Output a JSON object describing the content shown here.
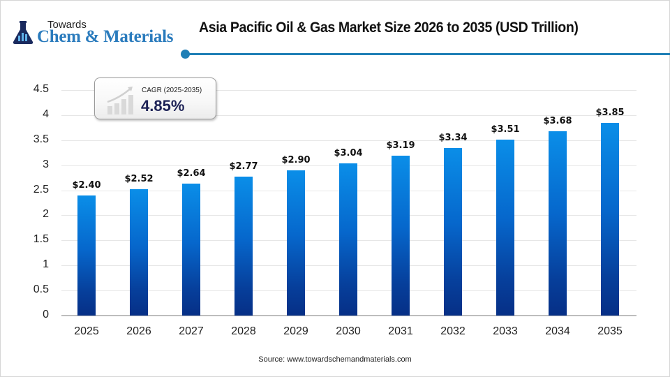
{
  "logo": {
    "top_text": "Towards",
    "main_text": "Chem & Materials",
    "icon": "flask-chart-icon"
  },
  "header": {
    "title": "Asia Pacific Oil & Gas Market Size 2026 to 2035 (USD Trillion)",
    "accent_color": "#1f7fb6"
  },
  "cagr": {
    "label": "CAGR (2025-2035)",
    "value": "4.85%",
    "icon": "growth-chart-icon"
  },
  "axis": {
    "y_ticks": [
      "0",
      "0.5",
      "1",
      "1.5",
      "2",
      "2.5",
      "3",
      "3.5",
      "4",
      "4.5"
    ],
    "x_ticks": [
      "2025",
      "2026",
      "2027",
      "2028",
      "2029",
      "2030",
      "2031",
      "2032",
      "2033",
      "2034",
      "2035"
    ]
  },
  "bars": {
    "labels": [
      "$2.40",
      "$2.52",
      "$2.64",
      "$2.77",
      "$2.90",
      "$3.04",
      "$3.19",
      "$3.34",
      "$3.51",
      "$3.68",
      "$3.85"
    ]
  },
  "source": "Source: www.towardschemandmaterials.com",
  "chart_data": {
    "type": "bar",
    "title": "Asia Pacific Oil & Gas Market Size 2026 to 2035 (USD Trillion)",
    "categories": [
      "2025",
      "2026",
      "2027",
      "2028",
      "2029",
      "2030",
      "2031",
      "2032",
      "2033",
      "2034",
      "2035"
    ],
    "values": [
      2.4,
      2.52,
      2.64,
      2.77,
      2.9,
      3.04,
      3.19,
      3.34,
      3.51,
      3.68,
      3.85
    ],
    "data_labels": [
      "$2.40",
      "$2.52",
      "$2.64",
      "$2.77",
      "$2.90",
      "$3.04",
      "$3.19",
      "$3.34",
      "$3.51",
      "$3.68",
      "$3.85"
    ],
    "xlabel": "",
    "ylabel": "",
    "ylim": [
      0,
      4.5
    ],
    "y_ticks": [
      0,
      0.5,
      1,
      1.5,
      2,
      2.5,
      3,
      3.5,
      4,
      4.5
    ],
    "grid": true,
    "legend": null,
    "annotations": [
      "CAGR (2025-2035) 4.85%"
    ],
    "bar_color_gradient": [
      "#0a8ee8",
      "#062f86"
    ]
  }
}
